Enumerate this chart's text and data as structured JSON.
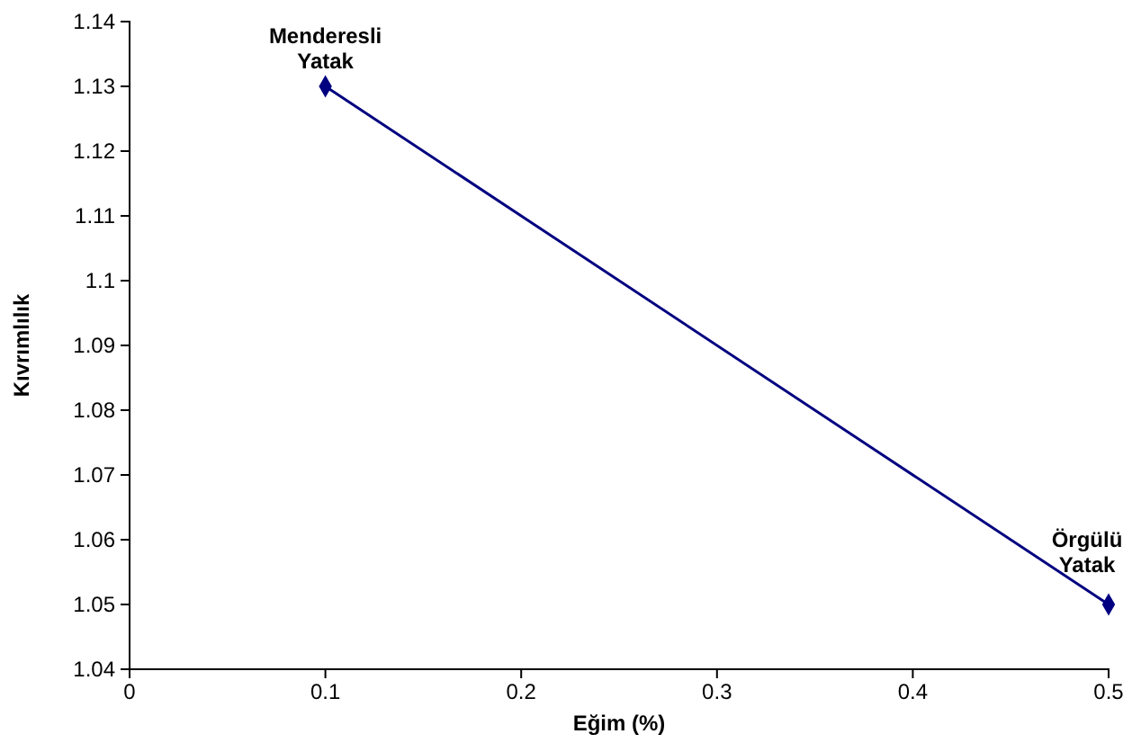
{
  "chart_data": {
    "type": "line",
    "xlabel": "Eğim (%)",
    "ylabel": "Kıvrımlılık",
    "x": [
      0.1,
      0.5
    ],
    "series": [
      {
        "color": "#000080",
        "values": [
          1.13,
          1.05
        ]
      }
    ],
    "xlim": [
      0,
      0.5
    ],
    "xticks": [
      0,
      0.1,
      0.2,
      0.3,
      0.4,
      0.5
    ],
    "ylim": [
      1.04,
      1.14
    ],
    "yticks": [
      1.04,
      1.05,
      1.06,
      1.07,
      1.08,
      1.09,
      1.1,
      1.11,
      1.12,
      1.13,
      1.14
    ],
    "marker": "diamond",
    "line_style": "solid",
    "annotations": [
      {
        "text": "Menderesli Yatak",
        "x": 0.1,
        "y": 1.13
      },
      {
        "text": "Örgülü Yatak",
        "x": 0.5,
        "y": 1.05
      }
    ]
  }
}
